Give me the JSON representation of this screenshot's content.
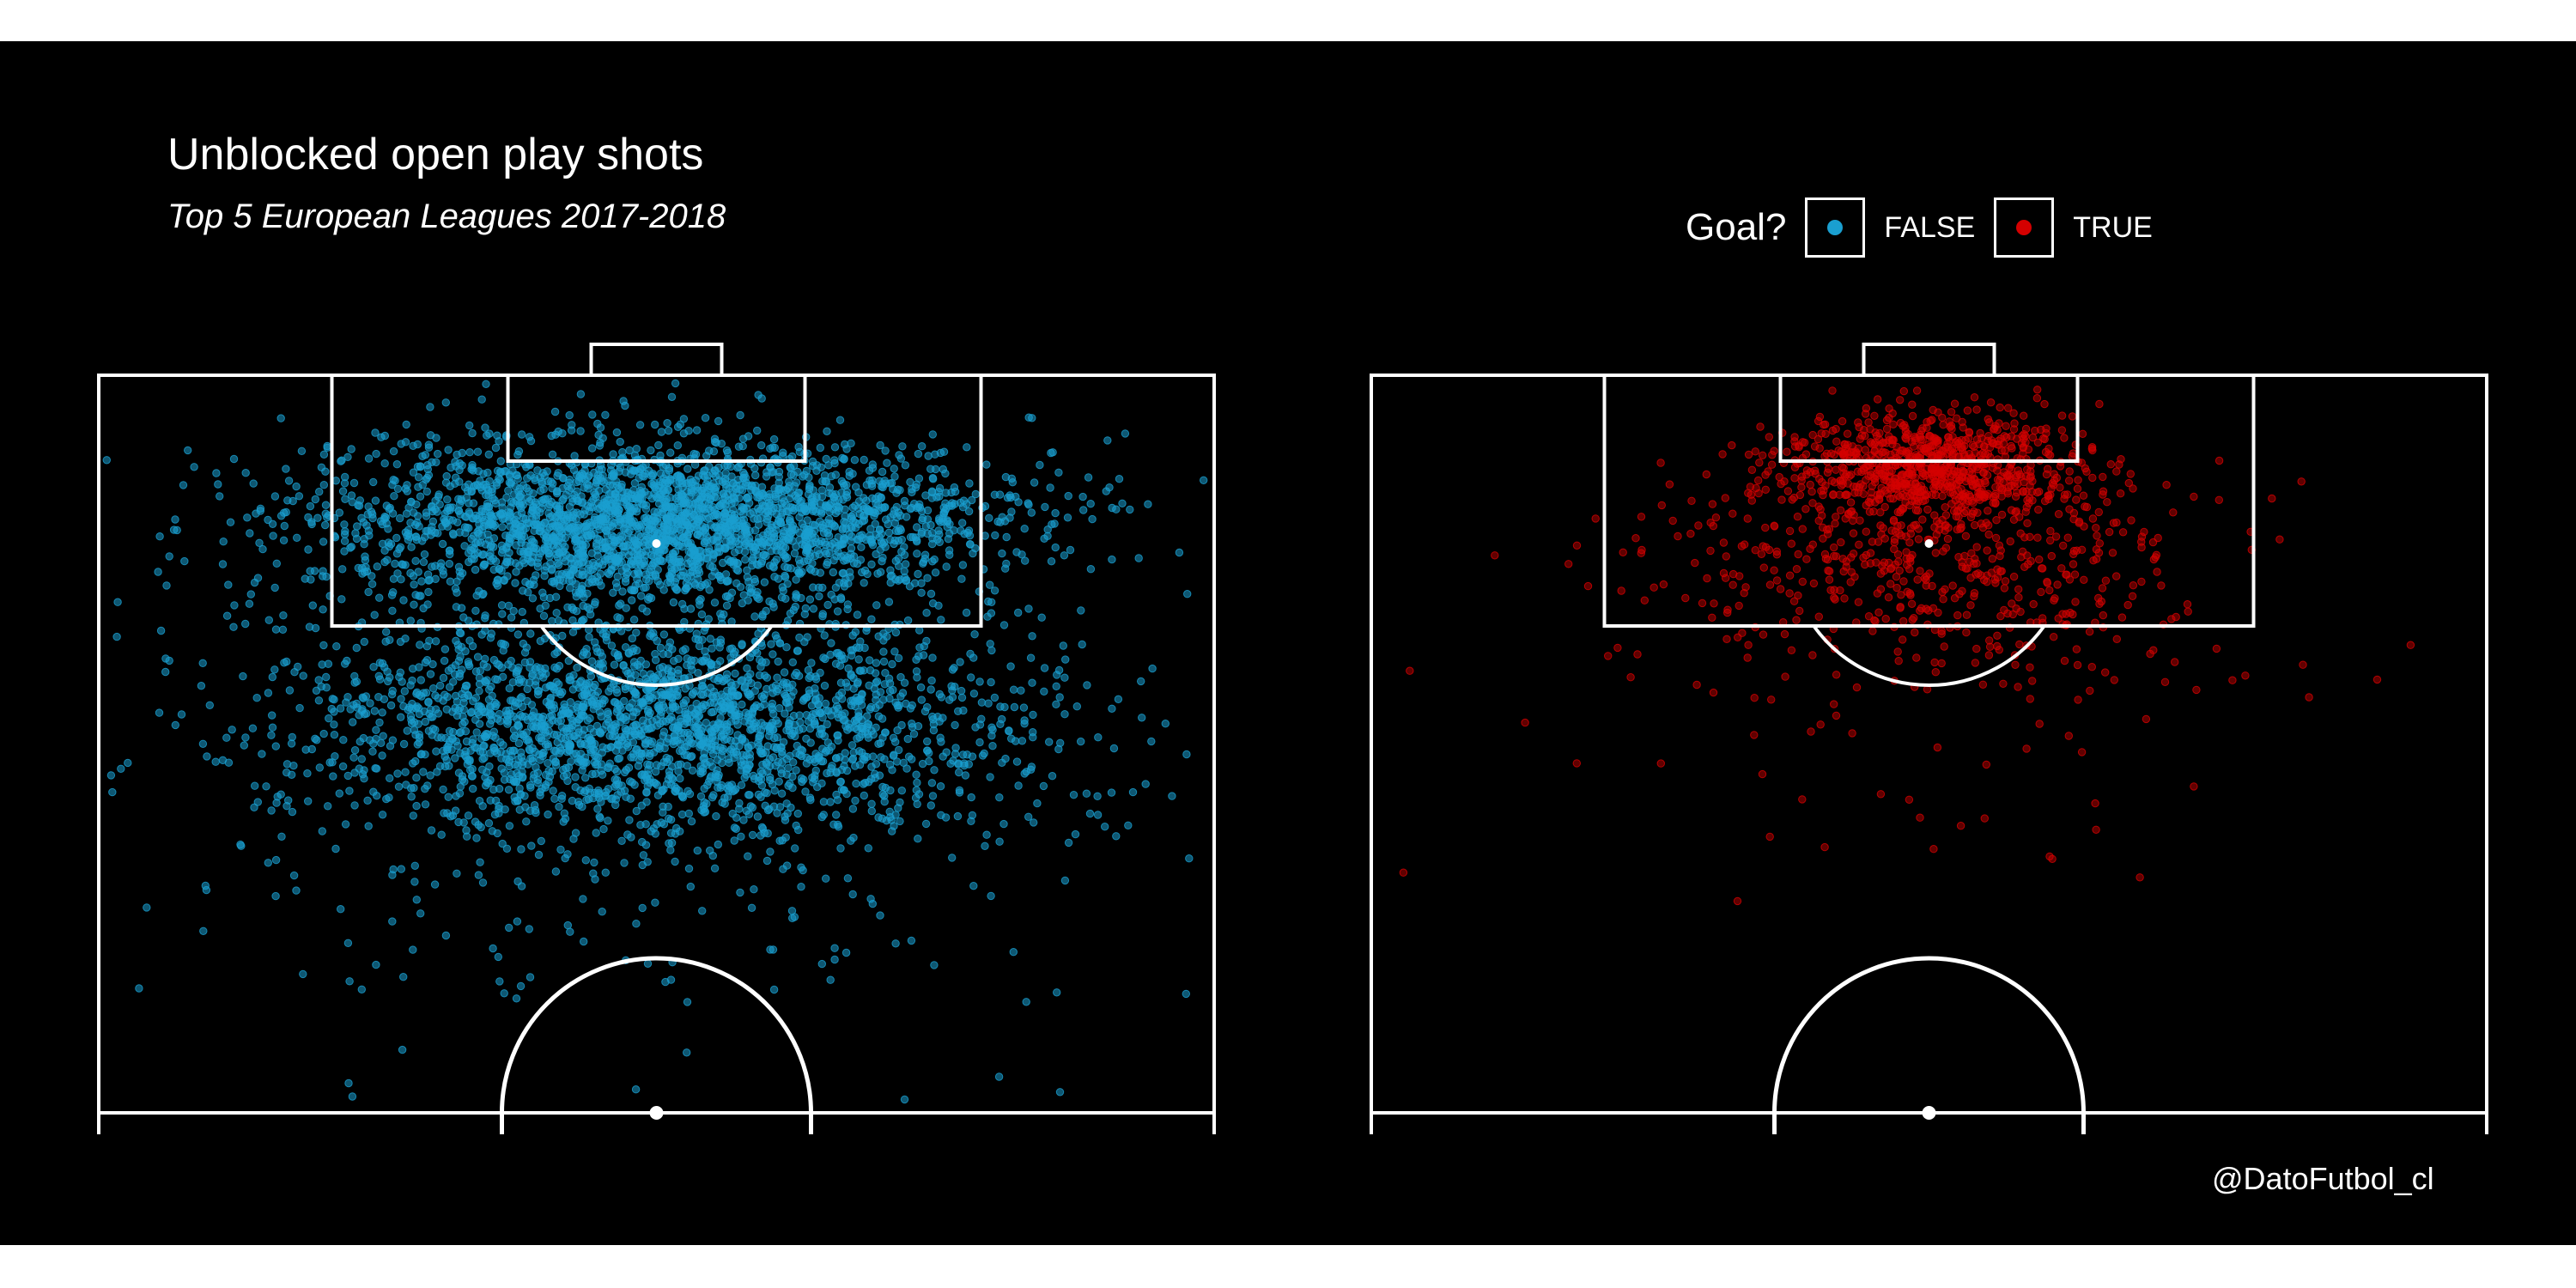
{
  "title": "Unblocked open play shots",
  "subtitle": "Top 5 European Leagues 2017-2018",
  "legend": {
    "title": "Goal?",
    "items": [
      {
        "label": "FALSE",
        "color": "#1a9fd0"
      },
      {
        "label": "TRUE",
        "color": "#d40000"
      }
    ]
  },
  "credit": "@DatoFutbol_cl",
  "colors": {
    "background": "#000000",
    "lines": "#ffffff",
    "no_goal": "#1a9fd0",
    "goal": "#d40000"
  },
  "chart_data": [
    {
      "type": "scatter",
      "facet": "FALSE",
      "description_axes": "pitch x (0-100 width), pitch y (distance from goal line, 0-66)",
      "xlim": [
        0,
        100
      ],
      "ylim": [
        0,
        66
      ],
      "approx_points": 5500,
      "density_regions": [
        {
          "x_center": 50,
          "y_center": 13,
          "x_spread": 27,
          "y_spread": 6,
          "weight": 0.5
        },
        {
          "x_center": 50,
          "y_center": 31,
          "x_spread": 29,
          "y_spread": 8,
          "weight": 0.42
        },
        {
          "x_center": 50,
          "y_center": 35,
          "x_spread": 45,
          "y_spread": 20,
          "weight": 0.08
        }
      ]
    },
    {
      "type": "scatter",
      "facet": "TRUE",
      "xlim": [
        0,
        100
      ],
      "ylim": [
        0,
        66
      ],
      "approx_points": 1400,
      "density_regions": [
        {
          "x_center": 50,
          "y_center": 8,
          "x_spread": 12,
          "y_spread": 4,
          "weight": 0.55
        },
        {
          "x_center": 50,
          "y_center": 16,
          "x_spread": 20,
          "y_spread": 8,
          "weight": 0.38
        },
        {
          "x_center": 50,
          "y_center": 28,
          "x_spread": 35,
          "y_spread": 15,
          "weight": 0.07
        }
      ]
    }
  ]
}
